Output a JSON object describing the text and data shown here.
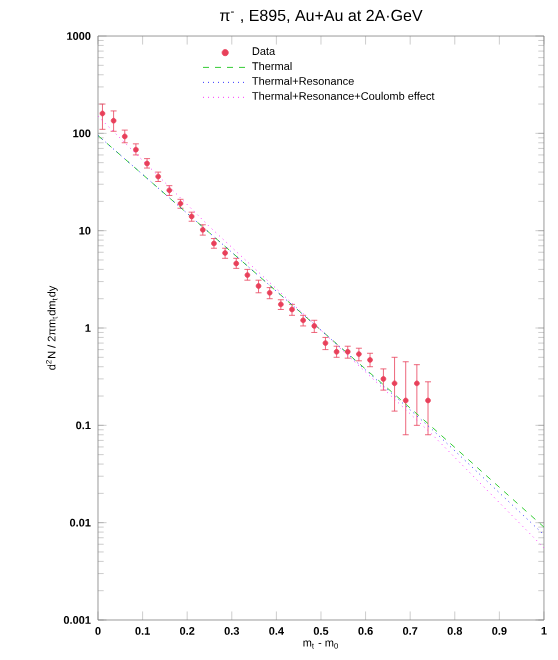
{
  "chart_data": {
    "type": "scatter",
    "title": "π$^{-}$ , E895, Au+Au at 2A·GeV",
    "xlabel": "m$_{t}$ - m$_{0}$",
    "ylabel": "d$^{2}$N / 2πm$_{t}$dm$_{t}$dy",
    "log": "y",
    "legend": "top",
    "xlim": [
      0,
      1
    ],
    "xticks": [
      0,
      0.1,
      0.2,
      0.3,
      0.4,
      0.5,
      0.6,
      0.7,
      0.8,
      0.9,
      1
    ],
    "ylim": [
      0.001,
      1000
    ],
    "yticks": [
      0.001,
      0.01,
      0.1,
      1,
      10,
      100,
      1000
    ],
    "series": [
      {
        "name": "Data",
        "marker": "none",
        "color": "#e8405a",
        "x": [
          0.01,
          0.035,
          0.06,
          0.085,
          0.11,
          0.135,
          0.16,
          0.185,
          0.21,
          0.235,
          0.26,
          0.285,
          0.31,
          0.335,
          0.36,
          0.385,
          0.41,
          0.435,
          0.46,
          0.485,
          0.51,
          0.535,
          0.56,
          0.585,
          0.61,
          0.64,
          0.665,
          0.69,
          0.715,
          0.74
        ],
        "values": [
          160,
          135,
          93,
          68,
          49,
          36,
          26,
          19,
          14,
          10.2,
          7.4,
          5.9,
          4.6,
          3.5,
          2.7,
          2.3,
          1.75,
          1.55,
          1.2,
          1.05,
          0.7,
          0.57,
          0.57,
          0.54,
          0.47,
          0.3,
          0.27,
          0.18,
          0.27,
          0.18
        ],
        "errors": [
          [
            110,
            200
          ],
          [
            105,
            170
          ],
          [
            80,
            108
          ],
          [
            60,
            78
          ],
          [
            44,
            55
          ],
          [
            32,
            40
          ],
          [
            23,
            29
          ],
          [
            17,
            21
          ],
          [
            12.5,
            15.5
          ],
          [
            9,
            11.5
          ],
          [
            6.6,
            8.3
          ],
          [
            5.2,
            6.6
          ],
          [
            4.1,
            5.2
          ],
          [
            3.1,
            4
          ],
          [
            2.3,
            3.1
          ],
          [
            2,
            2.6
          ],
          [
            1.55,
            1.95
          ],
          [
            1.35,
            1.75
          ],
          [
            1.05,
            1.35
          ],
          [
            0.9,
            1.2
          ],
          [
            0.6,
            0.8
          ],
          [
            0.5,
            0.65
          ],
          [
            0.49,
            0.65
          ],
          [
            0.46,
            0.62
          ],
          [
            0.4,
            0.55
          ],
          [
            0.23,
            0.38
          ],
          [
            0.14,
            0.5
          ],
          [
            0.08,
            0.45
          ],
          [
            0.1,
            0.42
          ],
          [
            0.08,
            0.28
          ]
        ]
      },
      {
        "name": "Thermal",
        "type": "line",
        "line_style": "dashed",
        "color": "#33cc33",
        "x": [
          0,
          0.25,
          0.5,
          0.75,
          1
        ],
        "values": [
          95,
          9.5,
          0.95,
          0.095,
          0.009
        ]
      },
      {
        "name": "Thermal+Resonance",
        "type": "line",
        "line_style": "dotted",
        "color": "#3333ff",
        "x": [
          0,
          0.25,
          0.5,
          0.75,
          1
        ],
        "values": [
          95,
          9.5,
          0.95,
          0.09,
          0.0075
        ]
      },
      {
        "name": "Thermal+Resonance+Coulomb effect",
        "type": "line",
        "line_style": "dotted",
        "color": "#ff33ff",
        "x": [
          0,
          0.25,
          0.5,
          0.75,
          1
        ],
        "values": [
          150,
          11,
          0.95,
          0.08,
          0.0055
        ]
      }
    ]
  }
}
